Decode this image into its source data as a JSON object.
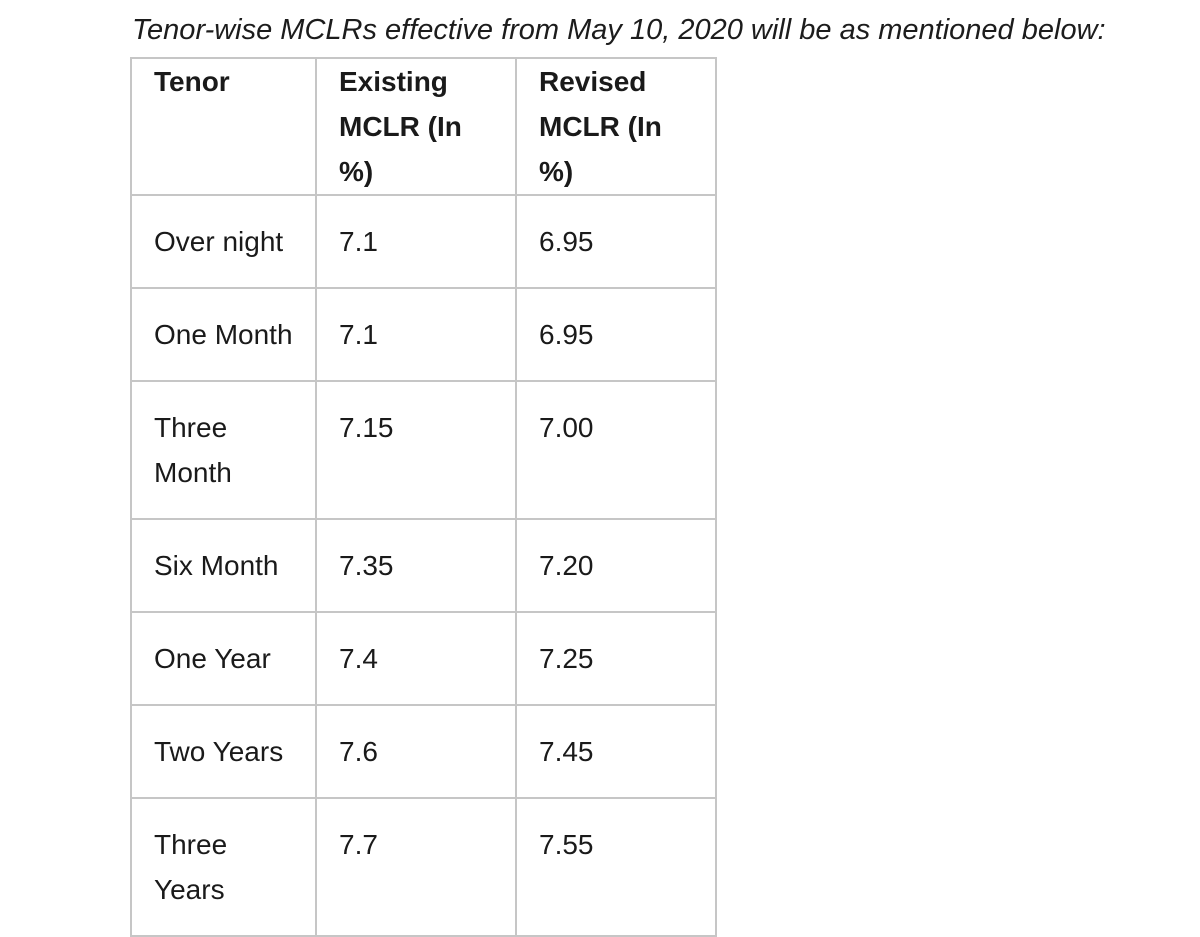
{
  "caption": "Tenor-wise MCLRs effective from May 10, 2020 will be as mentioned below:",
  "colors": {
    "background": "#ffffff",
    "text": "#1a1a1a",
    "table_border": "#c6c6c6"
  },
  "chart_data": {
    "type": "table",
    "title": "Tenor-wise MCLRs effective from May 10, 2020 will be as mentioned below:",
    "columns": {
      "tenor": "Tenor",
      "existing": "Existing\nMCLR (In %)",
      "revised": "Revised\nMCLR (In %)"
    },
    "rows": [
      {
        "tenor": "Over night",
        "existing": "7.1",
        "revised": "6.95"
      },
      {
        "tenor": "One Month",
        "existing": "7.1",
        "revised": "6.95"
      },
      {
        "tenor": "Three\nMonth",
        "existing": "7.15",
        "revised": "7.00"
      },
      {
        "tenor": "Six Month",
        "existing": "7.35",
        "revised": "7.20"
      },
      {
        "tenor": "One Year",
        "existing": "7.4",
        "revised": "7.25"
      },
      {
        "tenor": "Two Years",
        "existing": "7.6",
        "revised": "7.45"
      },
      {
        "tenor": "Three\nYears",
        "existing": "7.7",
        "revised": "7.55"
      }
    ]
  }
}
